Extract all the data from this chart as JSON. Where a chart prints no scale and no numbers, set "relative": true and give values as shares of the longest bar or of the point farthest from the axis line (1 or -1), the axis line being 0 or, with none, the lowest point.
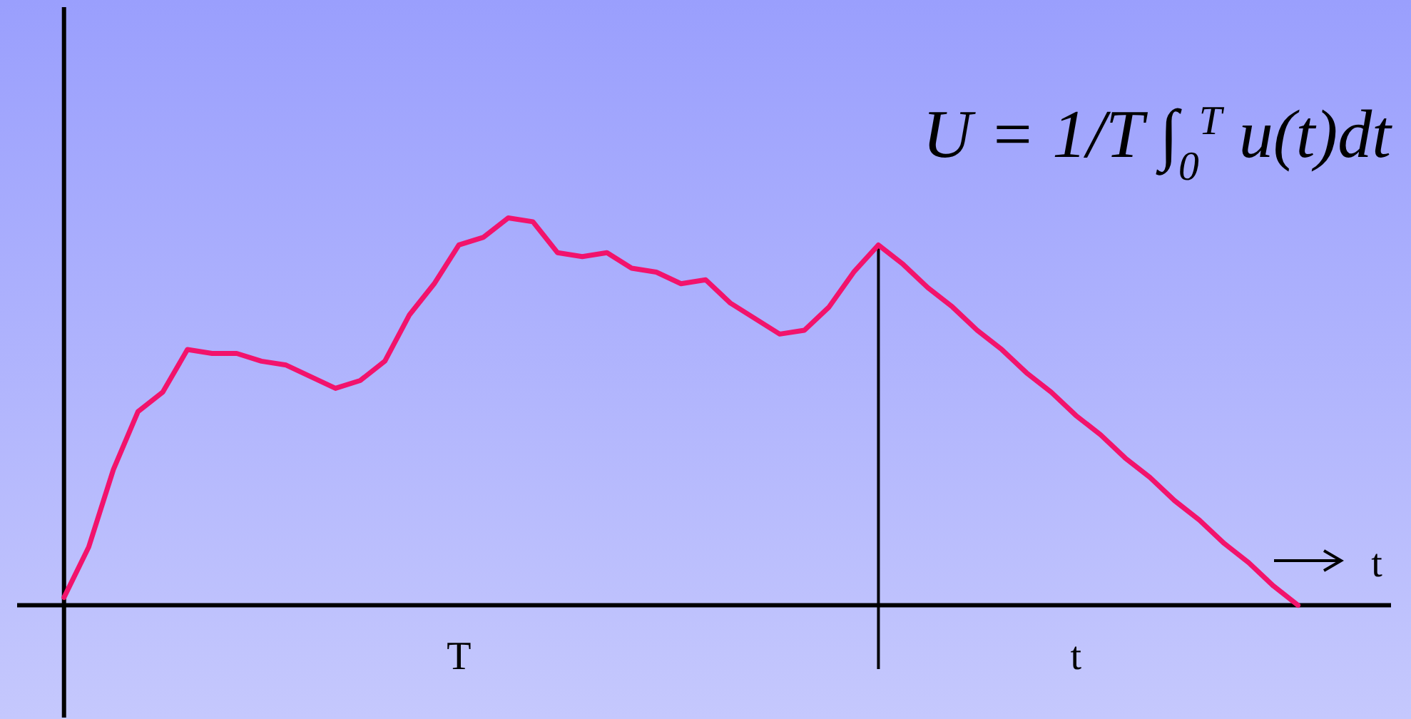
{
  "chart_data": {
    "type": "line",
    "relative": true,
    "xlabel": "t",
    "categories": [
      null,
      null,
      null,
      null,
      null,
      null,
      null,
      null,
      null,
      null,
      null,
      null,
      null,
      null,
      null,
      null,
      "T",
      null,
      null,
      null,
      null,
      null,
      null,
      null,
      null,
      null,
      null,
      null,
      null,
      null,
      null,
      null,
      null,
      null,
      null,
      null,
      null,
      null,
      null,
      null,
      null,
      "t",
      null,
      null,
      null,
      null,
      null,
      null,
      null,
      null,
      null
    ],
    "series": [
      {
        "color": "#f2136c",
        "values": [
          0.02,
          0.15,
          0.35,
          0.5,
          0.55,
          0.66,
          0.65,
          0.65,
          0.63,
          0.62,
          0.59,
          0.56,
          0.58,
          0.63,
          0.75,
          0.83,
          0.93,
          0.95,
          1,
          0.99,
          0.91,
          0.9,
          0.91,
          0.87,
          0.86,
          0.83,
          0.84,
          0.78,
          0.74,
          0.7,
          0.71,
          0.77,
          0.86,
          0.93,
          0.88,
          0.82,
          0.77,
          0.71,
          0.66,
          0.6,
          0.55,
          0.49,
          0.44,
          0.38,
          0.33,
          0.27,
          0.22,
          0.16,
          0.11,
          0.05,
          0
        ]
      }
    ],
    "annotations": [
      "U = 1/T ∫$_{0}$$^{T}$ u(t)dt"
    ],
    "marker": "none",
    "line_style": "solid",
    "grid": false,
    "legend": false
  }
}
